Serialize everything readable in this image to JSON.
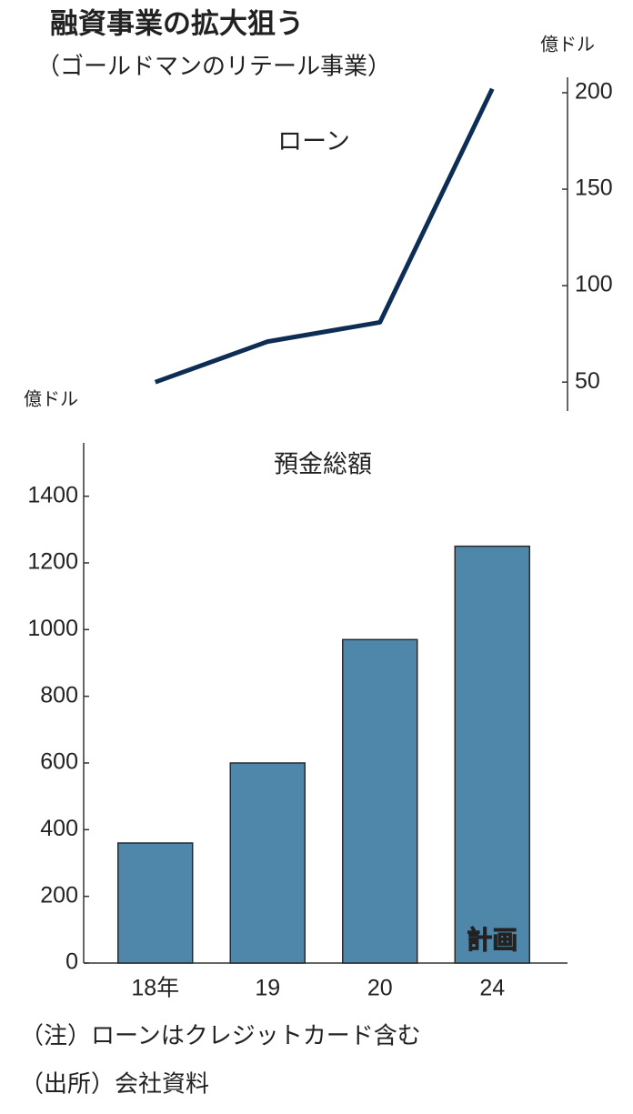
{
  "title": "融資事業の拡大狙う",
  "subtitle": "（ゴールドマンのリテール事業）",
  "chart_data": [
    {
      "type": "line",
      "title": "ローン",
      "unit": "億ドル",
      "values": [
        50,
        71,
        81,
        202
      ],
      "color": "#0e2d55",
      "ylim": [
        35,
        208
      ],
      "yticks": [
        50,
        100,
        150,
        200
      ]
    },
    {
      "type": "bar",
      "title": "預金総額",
      "unit": "億ドル",
      "categories": [
        "18年",
        "19",
        "20",
        "24"
      ],
      "values": [
        360,
        600,
        970,
        1250
      ],
      "color": "#4f87ab",
      "annotation": "計画",
      "ylim": [
        0,
        1560
      ],
      "yticks": [
        0,
        200,
        400,
        600,
        800,
        1000,
        1200,
        1400
      ]
    }
  ],
  "notes": [
    "（注）ローンはクレジットカード含む",
    "（出所）会社資料"
  ]
}
